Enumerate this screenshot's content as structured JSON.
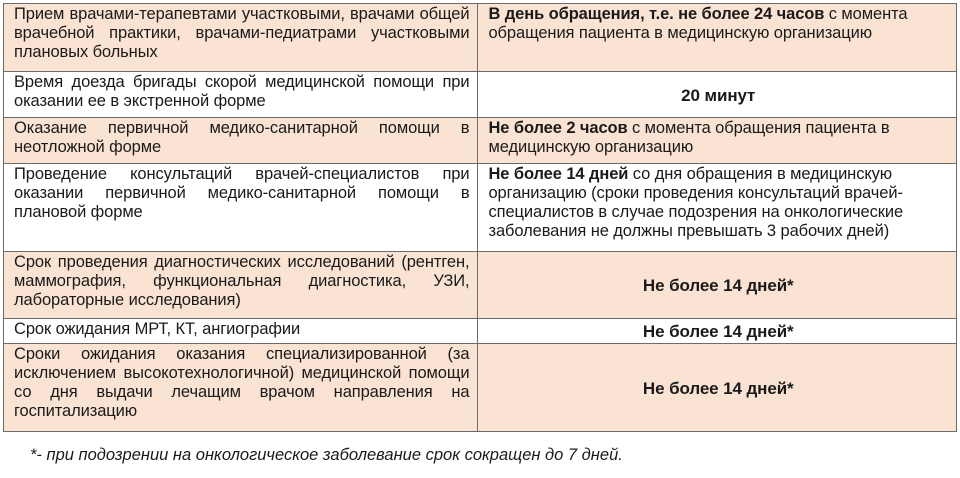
{
  "rows": [
    {
      "left": "Прием врачами-терапевтами участковыми, врачами общей врачебной практики, врачами-педиатрами участковыми плановых больных",
      "right_bold": "В день обращения, т.е. не более 24 часов",
      "right_rest": " с момента обращения пациента в медицинскую организацию"
    },
    {
      "left": "Время доезда бригады скорой медицинской помощи при оказании ее в экстренной форме",
      "right_bold": "20 минут"
    },
    {
      "left": "Оказание первичной медико-санитарной помощи в неотложной форме",
      "right_bold": "Не более 2 часов",
      "right_rest": " с момента обращения пациента в медицинскую организацию"
    },
    {
      "left": "Проведение консультаций врачей-специалистов при оказании первичной медико-санитарной помощи в плановой форме",
      "right_bold": "Не более 14 дней",
      "right_rest": " со дня обращения в медицинскую организацию (сроки проведения консультаций врачей-специалистов в случае подозрения на онкологические заболевания не должны превышать 3 рабочих дней)"
    },
    {
      "left": "Срок проведения диагностических исследований (рентген, маммография, функциональная диагностика, УЗИ, лабораторные исследования)",
      "right_bold": "Не более 14 дней*"
    },
    {
      "left": "Срок ожидания МРТ, КТ, ангиографии",
      "right_bold": "Не более 14 дней*"
    },
    {
      "left": "Сроки ожидания оказания специализированной (за исключением высокотехнологичной) медицинской помощи со дня выдачи лечащим врачом направления на госпитализацию",
      "right_bold": "Не более 14 дней*"
    }
  ],
  "footnote": "*- при подозрении на онкологическое заболевание срок сокращен до 7 дней."
}
